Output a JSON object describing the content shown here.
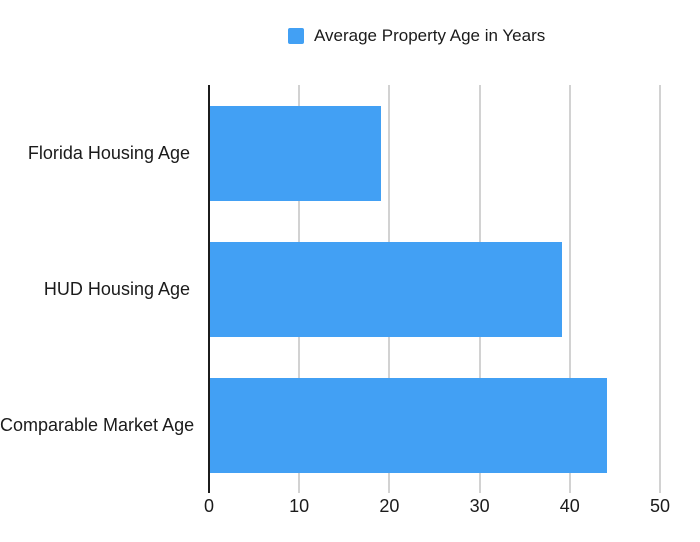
{
  "chart_data": {
    "type": "bar",
    "orientation": "horizontal",
    "legend": {
      "label": "Average Property Age in Years",
      "position": "top"
    },
    "categories": [
      "Florida Housing Age",
      "HUD Housing Age",
      "Comparable Market Age"
    ],
    "series": [
      {
        "name": "Average Property Age in Years",
        "values": [
          19,
          39,
          44
        ]
      }
    ],
    "xlabel": "",
    "ylabel": "",
    "xlim": [
      0,
      50
    ],
    "x_ticks": [
      0,
      10,
      20,
      30,
      40,
      50
    ],
    "grid": true,
    "colors": {
      "bar": "#42A0F4",
      "gridline": "#d2d2d2",
      "axis": "#1c1c1c",
      "text": "#1b1b1b",
      "background": "#ffffff"
    }
  }
}
